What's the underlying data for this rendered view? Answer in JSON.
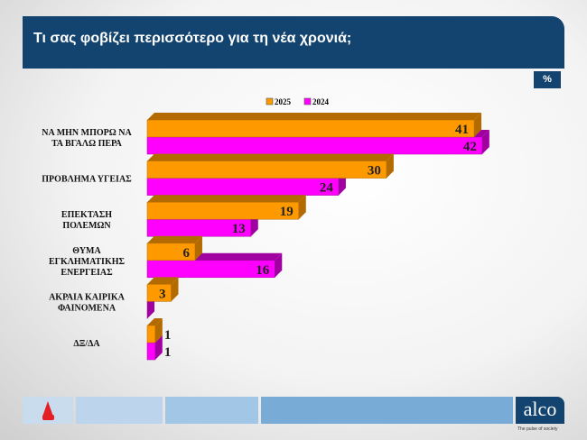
{
  "header": {
    "title": "Τι σας φοβίζει περισσότερο για τη νέα χρονιά;",
    "unit": "%"
  },
  "chart_data": {
    "type": "bar",
    "orientation": "horizontal",
    "style": "3d",
    "categories": [
      [
        "ΝΑ ΜΗΝ ΜΠΟΡΩ ΝΑ",
        "ΤΑ ΒΓΑΛΩ ΠΕΡΑ"
      ],
      [
        "ΠΡΟΒΛΗΜΑ ΥΓΕΙΑΣ"
      ],
      [
        "ΕΠΕΚΤΑΣΗ",
        "ΠΟΛΕΜΩΝ"
      ],
      [
        "ΘΥΜΑ",
        "ΕΓΚΛΗΜΑΤΙΚΗΣ",
        "ΕΝΕΡΓΕΙΑΣ"
      ],
      [
        "ΑΚΡΑΙΑ ΚΑΙΡΙΚΑ",
        "ΦΑΙΝΟΜΕΝΑ"
      ],
      [
        "ΔΞ/ΔΑ"
      ]
    ],
    "series": [
      {
        "name": "2025",
        "color": "#ff9900",
        "values": [
          41,
          30,
          19,
          6,
          3,
          1
        ]
      },
      {
        "name": "2024",
        "color": "#ff00ff",
        "values": [
          42,
          24,
          13,
          16,
          0,
          1
        ]
      }
    ],
    "xlim": [
      0,
      45
    ],
    "legend": "top",
    "grid": false
  },
  "footer": {
    "brand": "alco",
    "tagline": "The pulse of society",
    "left_logo": "alpha-news-logo"
  }
}
